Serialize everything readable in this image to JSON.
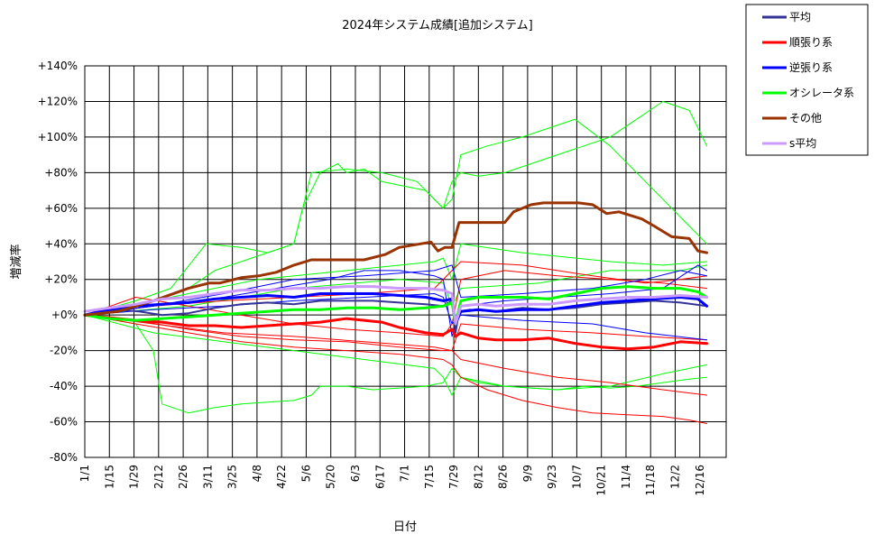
{
  "chart_data": {
    "type": "line",
    "title": "2024年システム成績[追加システム]",
    "xlabel": "日付",
    "ylabel": "増減率",
    "x_tick_labels": [
      "1/1",
      "1/15",
      "1/29",
      "2/12",
      "2/26",
      "3/11",
      "3/25",
      "4/8",
      "4/22",
      "5/6",
      "5/20",
      "6/3",
      "6/17",
      "7/1",
      "7/15",
      "7/29",
      "8/12",
      "8/26",
      "9/9",
      "9/23",
      "10/7",
      "10/21",
      "11/4",
      "11/18",
      "12/2",
      "12/16"
    ],
    "y_tick_labels": [
      "+140%",
      "+120%",
      "+100%",
      "+80%",
      "+60%",
      "+40%",
      "+20%",
      "+0%",
      "-20%",
      "-40%",
      "-60%",
      "-80%"
    ],
    "ylim": [
      -80,
      140
    ],
    "y_unit": "%",
    "grid": true,
    "legend_position": "top-right outside",
    "series": [
      {
        "name": "平均",
        "color": "#333399",
        "width": 2,
        "legend": true,
        "x": [
          1,
          10,
          20,
          32,
          45,
          60,
          75,
          90,
          105,
          120,
          135,
          150,
          165,
          180,
          195,
          205,
          210,
          212,
          214,
          220,
          235,
          250,
          265,
          280,
          295,
          310,
          325,
          340,
          355
        ],
        "values": [
          0,
          2,
          3,
          2,
          0,
          1,
          4,
          6,
          7,
          6,
          8,
          8,
          8,
          7,
          6,
          5,
          8,
          -10,
          2,
          3,
          2,
          4,
          3,
          4,
          6,
          7,
          8,
          7,
          5
        ]
      },
      {
        "name": "順張り系",
        "color": "#ff0000",
        "width": 3,
        "legend": true,
        "x": [
          1,
          10,
          20,
          30,
          45,
          60,
          75,
          90,
          105,
          120,
          135,
          150,
          160,
          170,
          180,
          195,
          205,
          210,
          212,
          215,
          225,
          235,
          250,
          265,
          280,
          295,
          310,
          325,
          340,
          355
        ],
        "values": [
          0,
          -1,
          -2,
          -3,
          -4,
          -6,
          -6,
          -7,
          -6,
          -5,
          -4,
          -2,
          -3,
          -4,
          -7,
          -10,
          -11,
          -8,
          -12,
          -10,
          -13,
          -14,
          -14,
          -13,
          -16,
          -18,
          -19,
          -18,
          -15,
          -16
        ]
      },
      {
        "name": "逆張り系",
        "color": "#0000ff",
        "width": 3,
        "legend": true,
        "x": [
          1,
          10,
          20,
          30,
          45,
          60,
          75,
          90,
          105,
          120,
          135,
          150,
          165,
          180,
          195,
          205,
          210,
          212,
          215,
          225,
          235,
          250,
          265,
          280,
          295,
          310,
          325,
          340,
          350,
          355
        ],
        "values": [
          0,
          2,
          4,
          5,
          6,
          7,
          9,
          10,
          11,
          10,
          12,
          12,
          12,
          11,
          10,
          8,
          9,
          -5,
          2,
          3,
          2,
          3,
          3,
          5,
          7,
          8,
          9,
          10,
          9,
          5
        ]
      },
      {
        "name": "オシレータ系",
        "color": "#00ff00",
        "width": 3,
        "legend": true,
        "x": [
          1,
          15,
          30,
          45,
          60,
          75,
          90,
          105,
          120,
          135,
          150,
          165,
          180,
          195,
          205,
          210,
          212,
          215,
          225,
          235,
          250,
          265,
          280,
          295,
          310,
          325,
          340,
          350,
          355
        ],
        "values": [
          0,
          -2,
          -3,
          -2,
          -1,
          0,
          1,
          2,
          3,
          3,
          4,
          4,
          3,
          4,
          5,
          7,
          -5,
          8,
          10,
          10,
          10,
          9,
          12,
          15,
          16,
          15,
          15,
          13,
          10
        ]
      },
      {
        "name": "その他",
        "color": "#993300",
        "width": 3,
        "legend": true,
        "x": [
          1,
          20,
          40,
          60,
          72,
          78,
          90,
          100,
          110,
          120,
          130,
          145,
          160,
          172,
          180,
          192,
          198,
          202,
          206,
          210,
          214,
          220,
          232,
          240,
          245,
          255,
          262,
          272,
          282,
          290,
          298,
          305,
          318,
          325,
          335,
          345,
          350,
          355
        ],
        "values": [
          0,
          2,
          8,
          15,
          18,
          18,
          21,
          22,
          24,
          28,
          31,
          31,
          31,
          34,
          38,
          40,
          41,
          36,
          38,
          38,
          52,
          52,
          52,
          52,
          58,
          62,
          63,
          63,
          63,
          62,
          57,
          58,
          54,
          50,
          44,
          43,
          36,
          35
        ]
      },
      {
        "name": "s平均",
        "color": "#cc99ff",
        "width": 3,
        "legend": true,
        "x": [
          1,
          15,
          30,
          45,
          60,
          75,
          90,
          105,
          120,
          135,
          150,
          165,
          180,
          195,
          205,
          210,
          212,
          215,
          225,
          235,
          250,
          265,
          280,
          295,
          310,
          325,
          340,
          355
        ],
        "values": [
          2,
          4,
          6,
          9,
          10,
          12,
          14,
          14,
          15,
          15,
          16,
          16,
          15,
          15,
          14,
          12,
          -5,
          5,
          6,
          5,
          6,
          6,
          8,
          9,
          10,
          10,
          11,
          10
        ]
      },
      {
        "color": "#00ff00",
        "width": 1,
        "x": [
          1,
          30,
          40,
          45,
          60,
          75,
          90,
          105,
          120,
          130,
          135,
          150,
          165,
          180,
          195,
          205,
          210,
          215,
          225,
          240,
          255,
          270,
          285,
          300,
          315,
          330,
          345,
          355
        ],
        "values": [
          0,
          -5,
          -20,
          -50,
          -55,
          -52,
          -50,
          -49,
          -48,
          -45,
          -40,
          -40,
          -42,
          -41,
          -40,
          -38,
          -30,
          -35,
          -38,
          -40,
          -41,
          -42,
          -40,
          -41,
          -40,
          -38,
          -36,
          -35
        ]
      },
      {
        "color": "#00ff00",
        "width": 1,
        "x": [
          1,
          30,
          60,
          75,
          90,
          105,
          120,
          125,
          135,
          145,
          150,
          160,
          170,
          180,
          195,
          205,
          210,
          215,
          225,
          240,
          255,
          270,
          285,
          300,
          315,
          330,
          345,
          355
        ],
        "values": [
          0,
          5,
          15,
          25,
          30,
          35,
          40,
          60,
          80,
          85,
          80,
          82,
          75,
          73,
          70,
          60,
          75,
          80,
          78,
          80,
          85,
          90,
          95,
          100,
          110,
          120,
          115,
          95
        ]
      },
      {
        "color": "#00ff00",
        "width": 1,
        "x": [
          1,
          30,
          50,
          70,
          90,
          105,
          120,
          130,
          150,
          170,
          190,
          205,
          210,
          215,
          230,
          250,
          265,
          280,
          300,
          320,
          335,
          345,
          355
        ],
        "values": [
          0,
          8,
          15,
          40,
          38,
          35,
          40,
          80,
          82,
          80,
          75,
          60,
          65,
          90,
          95,
          100,
          105,
          110,
          95,
          75,
          60,
          50,
          40
        ]
      },
      {
        "color": "#00ff00",
        "width": 1,
        "x": [
          1,
          40,
          80,
          120,
          160,
          200,
          205,
          210,
          215,
          240,
          270,
          300,
          330,
          355
        ],
        "values": [
          0,
          -10,
          -15,
          -20,
          -25,
          -30,
          -35,
          -45,
          -35,
          -40,
          -42,
          -40,
          -33,
          -28
        ]
      },
      {
        "color": "#00ff00",
        "width": 1,
        "x": [
          1,
          50,
          100,
          150,
          200,
          205,
          210,
          215,
          250,
          300,
          330,
          355
        ],
        "values": [
          0,
          10,
          20,
          25,
          30,
          32,
          20,
          40,
          35,
          30,
          28,
          30
        ]
      },
      {
        "color": "#00ff00",
        "width": 1,
        "x": [
          1,
          60,
          120,
          180,
          205,
          210,
          215,
          260,
          300,
          340,
          355
        ],
        "values": [
          0,
          5,
          15,
          20,
          18,
          5,
          15,
          18,
          25,
          25,
          28
        ]
      },
      {
        "color": "#ff0000",
        "width": 1,
        "x": [
          1,
          30,
          60,
          90,
          120,
          150,
          180,
          205,
          210,
          215,
          230,
          250,
          270,
          290,
          310,
          330,
          345,
          355
        ],
        "values": [
          0,
          -5,
          -10,
          -15,
          -18,
          -20,
          -22,
          -25,
          -28,
          -35,
          -42,
          -48,
          -52,
          -55,
          -56,
          -57,
          -59,
          -61
        ]
      },
      {
        "color": "#ff0000",
        "width": 1,
        "x": [
          1,
          30,
          60,
          90,
          120,
          150,
          180,
          205,
          210,
          215,
          240,
          270,
          300,
          330,
          355
        ],
        "values": [
          0,
          -3,
          -8,
          -12,
          -14,
          -15,
          -18,
          -20,
          -20,
          -25,
          -30,
          -35,
          -38,
          -42,
          -45
        ]
      },
      {
        "color": "#ff0000",
        "width": 1,
        "x": [
          1,
          30,
          60,
          90,
          120,
          150,
          180,
          205,
          210,
          215,
          240,
          270,
          300,
          330,
          355
        ],
        "values": [
          0,
          10,
          5,
          0,
          -5,
          -8,
          -10,
          -12,
          -5,
          20,
          25,
          22,
          20,
          18,
          15
        ]
      },
      {
        "color": "#ff0000",
        "width": 1,
        "x": [
          1,
          40,
          80,
          120,
          160,
          200,
          210,
          215,
          250,
          290,
          320,
          340,
          355
        ],
        "values": [
          0,
          5,
          8,
          10,
          12,
          15,
          25,
          30,
          28,
          22,
          18,
          20,
          22
        ]
      },
      {
        "color": "#ff0000",
        "width": 1,
        "x": [
          1,
          40,
          80,
          120,
          160,
          200,
          210,
          215,
          250,
          290,
          320,
          355
        ],
        "values": [
          0,
          -5,
          -10,
          -12,
          -15,
          -18,
          -20,
          -5,
          -8,
          -10,
          -12,
          -14
        ]
      },
      {
        "color": "#0000ff",
        "width": 1,
        "x": [
          1,
          40,
          80,
          110,
          140,
          160,
          180,
          200,
          205,
          210,
          215,
          240,
          270,
          300,
          330,
          350,
          355
        ],
        "values": [
          0,
          5,
          10,
          15,
          20,
          25,
          25,
          22,
          20,
          -12,
          5,
          8,
          10,
          12,
          15,
          28,
          25
        ]
      },
      {
        "color": "#0000ff",
        "width": 1,
        "x": [
          1,
          40,
          80,
          120,
          160,
          200,
          205,
          210,
          215,
          250,
          290,
          320,
          355
        ],
        "values": [
          0,
          3,
          5,
          8,
          10,
          12,
          10,
          -5,
          0,
          -3,
          -5,
          -10,
          -14
        ]
      },
      {
        "color": "#0000ff",
        "width": 1,
        "x": [
          1,
          40,
          80,
          120,
          160,
          200,
          210,
          215,
          250,
          290,
          320,
          340,
          355
        ],
        "values": [
          0,
          5,
          12,
          20,
          22,
          25,
          28,
          10,
          12,
          15,
          20,
          25,
          22
        ]
      }
    ]
  }
}
